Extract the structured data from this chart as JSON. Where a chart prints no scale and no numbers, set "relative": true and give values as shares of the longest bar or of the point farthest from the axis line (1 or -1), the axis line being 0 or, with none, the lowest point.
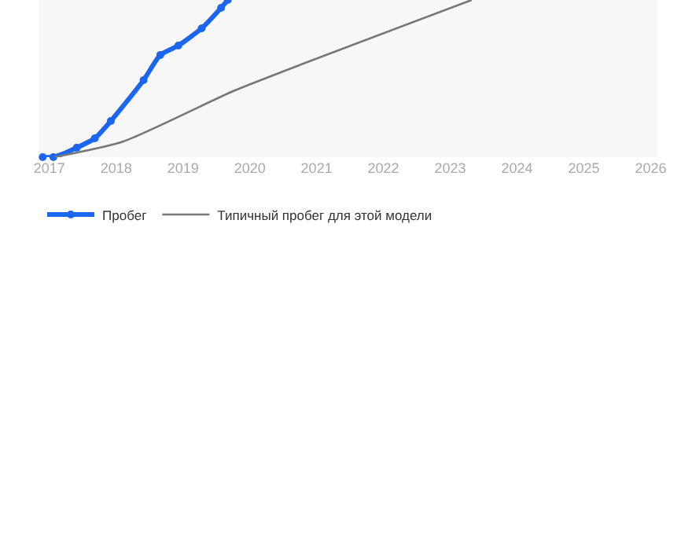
{
  "chart_data": {
    "type": "line",
    "relative": true,
    "legend": "bottom",
    "grid": false,
    "xlim": [
      2016.85,
      2026.1
    ],
    "xticks": [
      2017,
      2018,
      2019,
      2020,
      2021,
      2022,
      2023,
      2024,
      2025,
      2026
    ],
    "series": [
      {
        "name": "Пробег",
        "color": "#1a66f0",
        "marker": "circle",
        "x": [
          2016.9,
          2017.06,
          2017.41,
          2017.68,
          2017.92,
          2018.41,
          2018.66,
          2018.93,
          2019.28,
          2019.57,
          2019.67
        ],
        "values": [
          0,
          0,
          0.06,
          0.12,
          0.23,
          0.49,
          0.65,
          0.71,
          0.82,
          0.95,
          1
        ]
      },
      {
        "name": "Типичный пробег для этой модели",
        "color": "#777777",
        "marker": "none",
        "x": [
          2017.07,
          2018.11,
          2019.75,
          2020.83,
          2023.32
        ],
        "values": [
          0,
          0.1,
          0.42,
          0.6,
          1
        ]
      }
    ]
  }
}
